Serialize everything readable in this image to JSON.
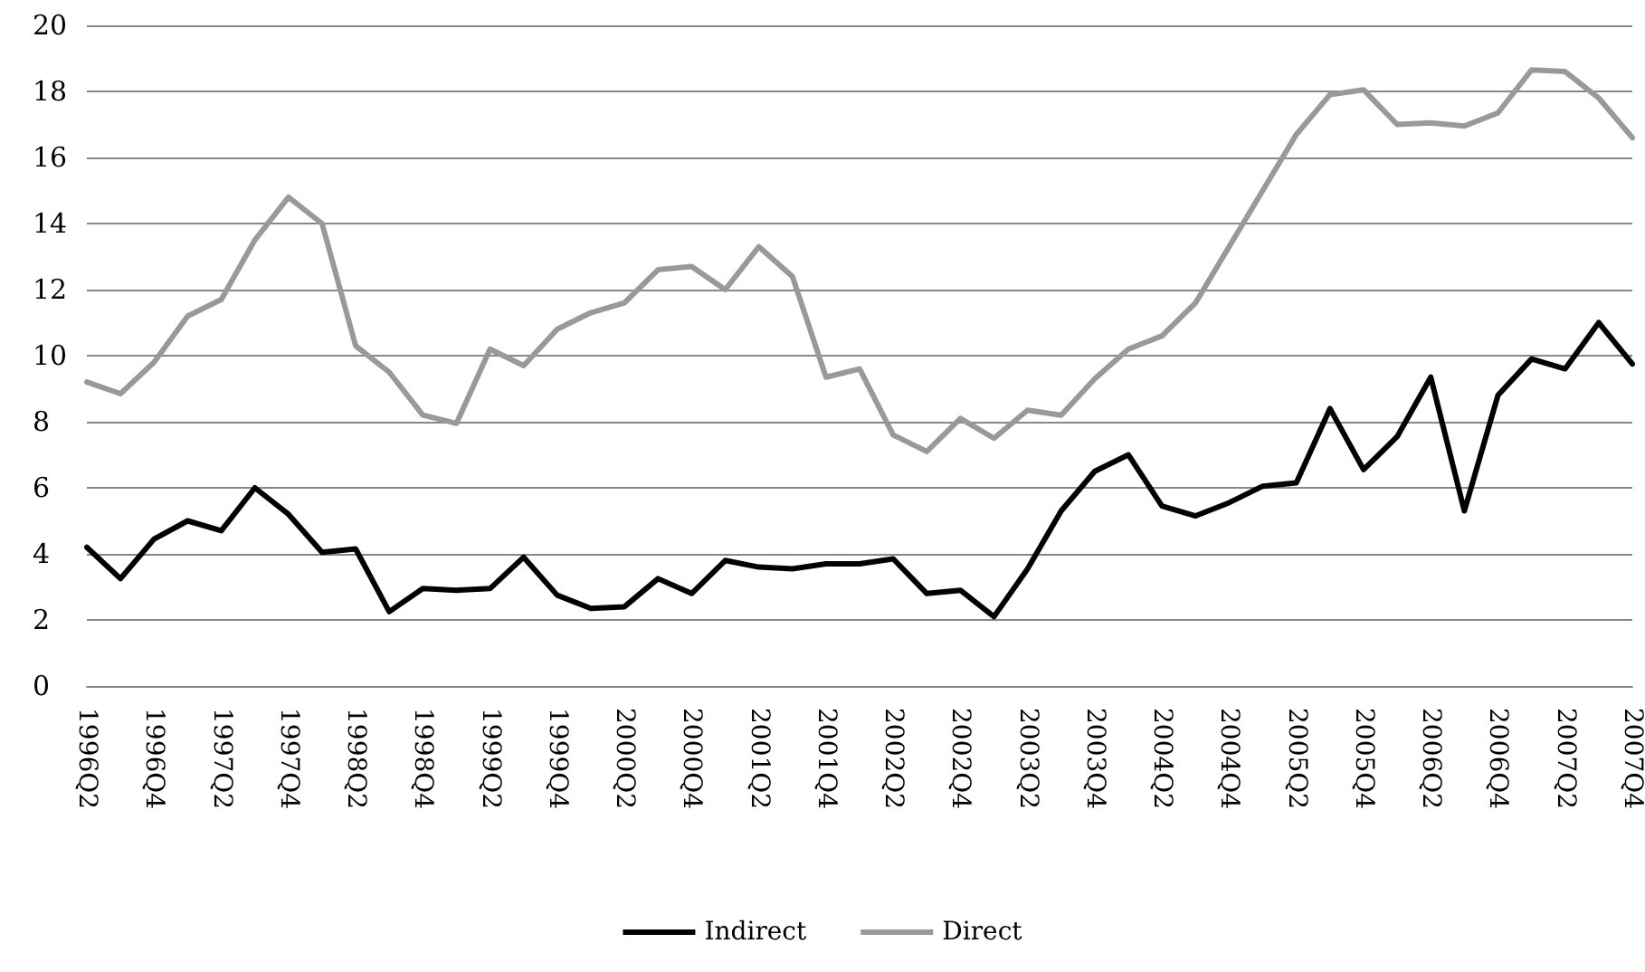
{
  "chart_data": {
    "type": "line",
    "categories": [
      "1996Q2",
      null,
      "1996Q4",
      null,
      "1997Q2",
      null,
      "1997Q4",
      null,
      "1998Q2",
      null,
      "1998Q4",
      null,
      "1999Q2",
      null,
      "1999Q4",
      null,
      "2000Q2",
      null,
      "2000Q4",
      null,
      "2001Q2",
      null,
      "2001Q4",
      null,
      "2002Q2",
      null,
      "2002Q4",
      null,
      "2003Q2",
      null,
      "2003Q4",
      null,
      "2004Q2",
      null,
      "2004Q4",
      null,
      "2005Q2",
      null,
      "2005Q4",
      null,
      "2006Q2",
      null,
      "2006Q4",
      null,
      "2007Q2",
      null,
      "2007Q4"
    ],
    "series": [
      {
        "name": "Indirect",
        "color": "#000000",
        "values": [
          4.2,
          3.25,
          4.45,
          5.0,
          4.7,
          6.0,
          5.2,
          4.05,
          4.15,
          2.25,
          2.95,
          2.9,
          2.95,
          3.9,
          2.75,
          2.35,
          2.4,
          3.25,
          2.8,
          3.8,
          3.6,
          3.55,
          3.7,
          3.7,
          3.85,
          2.8,
          2.9,
          2.1,
          3.55,
          5.3,
          6.5,
          7.0,
          5.45,
          5.15,
          5.55,
          6.05,
          6.15,
          8.4,
          6.55,
          7.55,
          9.35,
          5.3,
          8.8,
          9.9,
          9.6,
          11.0,
          9.75
        ]
      },
      {
        "name": "Direct",
        "color": "#999999",
        "values": [
          9.2,
          8.85,
          9.8,
          11.2,
          11.7,
          13.5,
          14.8,
          14.0,
          10.3,
          9.5,
          8.2,
          7.95,
          10.2,
          9.7,
          10.8,
          11.3,
          11.6,
          12.6,
          12.7,
          12.0,
          13.3,
          12.4,
          9.35,
          9.6,
          7.6,
          7.1,
          8.1,
          7.5,
          8.35,
          8.2,
          9.3,
          10.2,
          10.6,
          11.6,
          13.3,
          15.0,
          16.7,
          17.9,
          18.05,
          17.0,
          17.05,
          16.95,
          17.35,
          18.65,
          18.6,
          17.8,
          16.6
        ]
      }
    ],
    "ylim": [
      0,
      20
    ],
    "yticks": [
      0,
      2,
      4,
      6,
      8,
      10,
      12,
      14,
      16,
      18,
      20
    ],
    "grid": "y",
    "legend": "bottom",
    "marker": "none",
    "line_style": "solid"
  }
}
